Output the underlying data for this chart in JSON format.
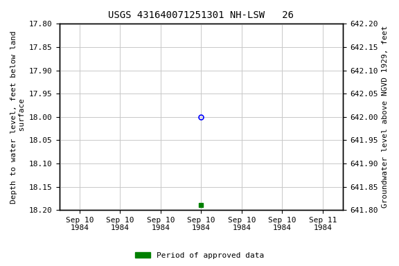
{
  "title": "USGS 431640071251301 NH-LSW   26",
  "left_ylabel": "Depth to water level, feet below land\n surface",
  "right_ylabel": "Groundwater level above NGVD 1929, feet",
  "ylim_left_top": 17.8,
  "ylim_left_bottom": 18.2,
  "ylim_right_top": 642.2,
  "ylim_right_bottom": 641.8,
  "yticks_left": [
    17.8,
    17.85,
    17.9,
    17.95,
    18.0,
    18.05,
    18.1,
    18.15,
    18.2
  ],
  "yticks_right": [
    642.2,
    642.15,
    642.1,
    642.05,
    642.0,
    641.95,
    641.9,
    641.85,
    641.8
  ],
  "ytick_labels_left": [
    "17.80",
    "17.85",
    "17.90",
    "17.95",
    "18.00",
    "18.05",
    "18.10",
    "18.15",
    "18.20"
  ],
  "ytick_labels_right": [
    "642.20",
    "642.15",
    "642.10",
    "642.05",
    "642.00",
    "641.95",
    "641.90",
    "641.85",
    "641.80"
  ],
  "xtick_positions": [
    0,
    1,
    2,
    3,
    4,
    5,
    6
  ],
  "xtick_labels": [
    "Sep 10\n1984",
    "Sep 10\n1984",
    "Sep 10\n1984",
    "Sep 10\n1984",
    "Sep 10\n1984",
    "Sep 10\n1984",
    "Sep 11\n1984"
  ],
  "data_blue_x": 3,
  "data_blue_y": 18.0,
  "data_green_x": 3,
  "data_green_y": 18.19,
  "legend_label": "Period of approved data",
  "legend_color": "#008000",
  "bg_color": "#ffffff",
  "grid_color": "#c8c8c8",
  "title_fontsize": 10,
  "label_fontsize": 8,
  "tick_fontsize": 8
}
